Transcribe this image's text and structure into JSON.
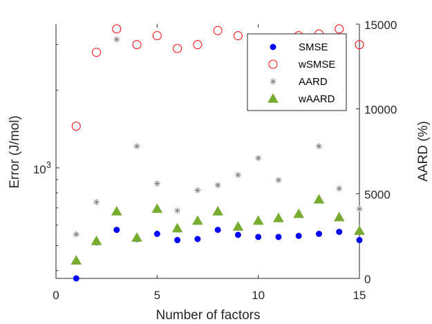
{
  "chart_data": {
    "type": "scatter",
    "title": "",
    "xlabel": "Number of factors",
    "ylabel_left": "Error (J/mol)",
    "ylabel_right": "AARD (%)",
    "xlim": [
      0,
      15
    ],
    "x_ticks": [
      0,
      5,
      10,
      15
    ],
    "x_tick_labels": [
      "0",
      "5",
      "10",
      "15"
    ],
    "yleft_scale": "log",
    "yleft_lim": [
      373,
      3600
    ],
    "yleft_ticks": [
      1000
    ],
    "yleft_tick_labels": {
      "base": "10",
      "exp": "3"
    },
    "yright_lim": [
      0,
      15000
    ],
    "yright_ticks": [
      0,
      5000,
      10000,
      15000
    ],
    "yright_tick_labels": [
      "0",
      "5000",
      "10000",
      "15000"
    ],
    "grid": false,
    "legend_position": "top-right",
    "x": [
      1,
      2,
      3,
      4,
      5,
      6,
      7,
      8,
      9,
      10,
      11,
      12,
      13,
      14,
      15
    ],
    "series": [
      {
        "name": "SMSE",
        "axis": "left",
        "marker": "dot",
        "color": "#0000ff",
        "values": [
          373,
          515,
          575,
          530,
          555,
          525,
          530,
          575,
          550,
          540,
          540,
          545,
          555,
          565,
          525
        ]
      },
      {
        "name": "wSMSE",
        "axis": "left",
        "marker": "circle",
        "color": "#ff0000",
        "values": [
          1450,
          2800,
          3450,
          3000,
          3250,
          2900,
          3000,
          3400,
          3250,
          3150,
          3150,
          3250,
          3300,
          3450,
          3000
        ]
      },
      {
        "name": "AARD",
        "axis": "right",
        "marker": "star",
        "color": "#808080",
        "values": [
          2600,
          4500,
          14100,
          7800,
          5600,
          4000,
          5200,
          5500,
          6100,
          7100,
          5800,
          null,
          7800,
          5300,
          4100
        ]
      },
      {
        "name": "wAARD",
        "axis": "right",
        "marker": "triangle",
        "color": "#77ac30",
        "values": [
          1050,
          2200,
          3950,
          2400,
          4100,
          2950,
          3400,
          3950,
          3050,
          3400,
          3550,
          3800,
          4650,
          3600,
          2800
        ]
      }
    ]
  }
}
